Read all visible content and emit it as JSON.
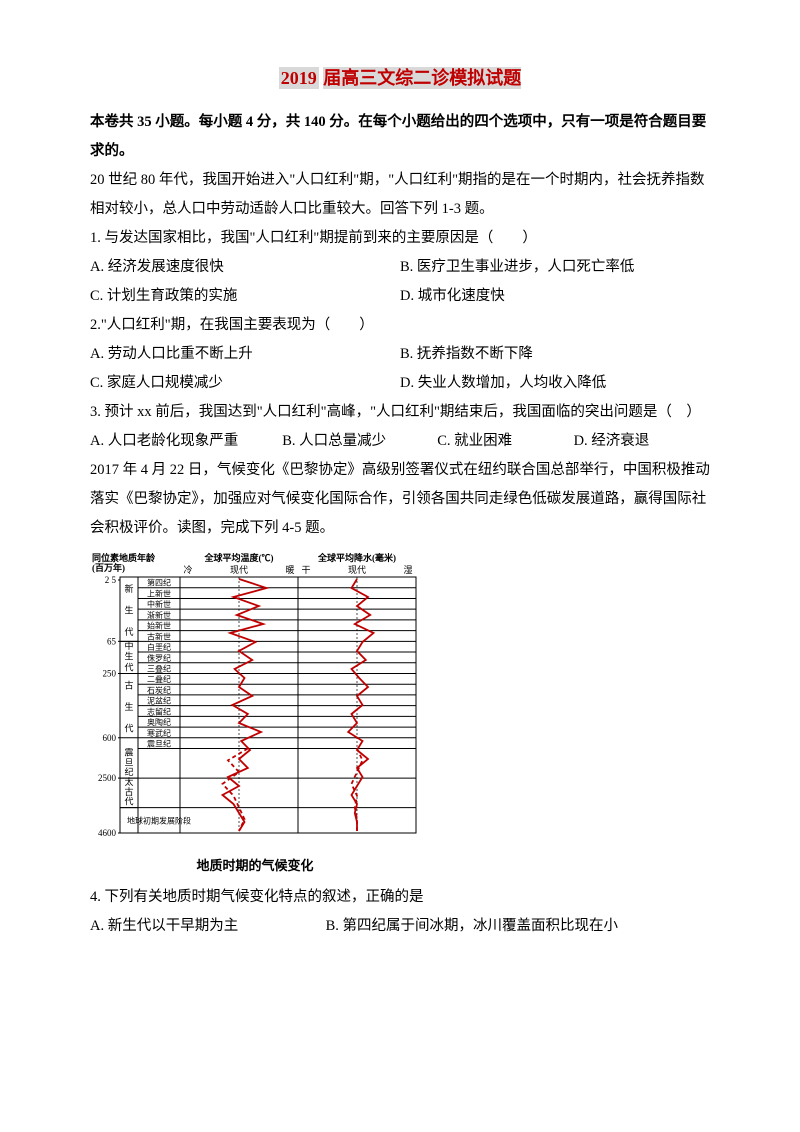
{
  "title": {
    "part1": "2019",
    "part2": "届高三文综二诊模拟试题"
  },
  "instruction": "本卷共 35 小题。每小题 4 分，共 140 分。在每个小题给出的四个选项中，只有一项是符合题目要求的。",
  "passage1": "20 世纪 80 年代，我国开始进入\"人口红利\"期，\"人口红利\"期指的是在一个时期内，社会抚养指数相对较小，总人口中劳动适龄人口比重较大。回答下列 1-3 题。",
  "q1": {
    "stem": "1. 与发达国家相比，我国\"人口红利\"期提前到来的主要原因是（　　）",
    "A": "A. 经济发展速度很快",
    "B": "B. 医疗卫生事业进步，人口死亡率低",
    "C": "C. 计划生育政策的实施",
    "D": "D. 城市化速度快"
  },
  "q2": {
    "stem": "2.\"人口红利\"期，在我国主要表现为（　　）",
    "A": "A. 劳动人口比重不断上升",
    "B": "B. 抚养指数不断下降",
    "C": "C. 家庭人口规模减少",
    "D": "D. 失业人数增加，人均收入降低"
  },
  "q3": {
    "stem": "3. 预计 xx 前后，我国达到\"人口红利\"高峰，\"人口红利\"期结束后，我国面临的突出问题是（　）",
    "A": "A. 人口老龄化现象严重",
    "B": "B. 人口总量减少",
    "C": "C. 就业困难",
    "D": "D. 经济衰退"
  },
  "passage2": "2017 年 4 月 22 日，气候变化《巴黎协定》高级别签署仪式在纽约联合国总部举行，中国积极推动落实《巴黎协定》，加强应对气候变化国际合作，引领各国共同走绿色低碳发展道路，赢得国际社会积极评价。读图，完成下列 4-5 题。",
  "figure": {
    "caption": "地质时期的气候变化",
    "left_header": "同位素地质年龄\n(百万年)",
    "col1_header": "全球平均温度(℃)",
    "col1_sub_l": "冷",
    "col1_sub_c": "现代",
    "col1_sub_r": "暖",
    "col2_header": "全球平均降水(毫米)",
    "col2_sub_l": "干",
    "col2_sub_c": "现代",
    "col2_sub_r": "湿",
    "age_ticks": [
      "2 5",
      "65",
      "250",
      "600",
      "2500",
      "4600"
    ],
    "eras": [
      "新",
      "生",
      "代",
      "中",
      "生",
      "代",
      "古",
      "生",
      "代",
      "震",
      "旦",
      "纪",
      "太",
      "古",
      "代"
    ],
    "periods": [
      "第四纪",
      "上新世",
      "中新世",
      "渐新世",
      "始新世",
      "古新世",
      "白垩纪",
      "侏罗纪",
      "三叠纪",
      "二叠纪",
      "石炭纪",
      "泥盆纪",
      "志留纪",
      "奥陶纪",
      "寒武纪",
      "震旦纪"
    ],
    "bottom_label": "地球初期发展阶段",
    "temp_curve_color": "#c00000",
    "precip_curve_color": "#c00000",
    "temp_values": [
      0.5,
      0.75,
      0.45,
      0.68,
      0.48,
      0.72,
      0.42,
      0.65,
      0.5,
      0.62,
      0.46,
      0.55,
      0.5,
      0.62,
      0.44,
      0.58,
      0.5,
      0.7,
      0.52,
      0.6,
      0.5,
      0.58,
      0.4,
      0.5,
      0.35,
      0.45,
      0.5,
      0.55,
      0.5
    ],
    "precip_values": [
      0.5,
      0.45,
      0.6,
      0.5,
      0.62,
      0.48,
      0.65,
      0.55,
      0.5,
      0.58,
      0.45,
      0.52,
      0.6,
      0.5,
      0.55,
      0.45,
      0.5,
      0.42,
      0.55,
      0.5,
      0.6,
      0.5,
      0.55,
      0.5,
      0.45,
      0.5,
      0.48,
      0.5,
      0.5
    ],
    "grid_color": "#000000",
    "background_color": "#ffffff",
    "font_size_labels": 9,
    "curve_width": 1.8
  },
  "q4": {
    "stem": "4. 下列有关地质时期气候变化特点的叙述，正确的是",
    "A": "A. 新生代以干早期为主",
    "B": "B. 第四纪属于间冰期，冰川覆盖面积比现在小"
  }
}
